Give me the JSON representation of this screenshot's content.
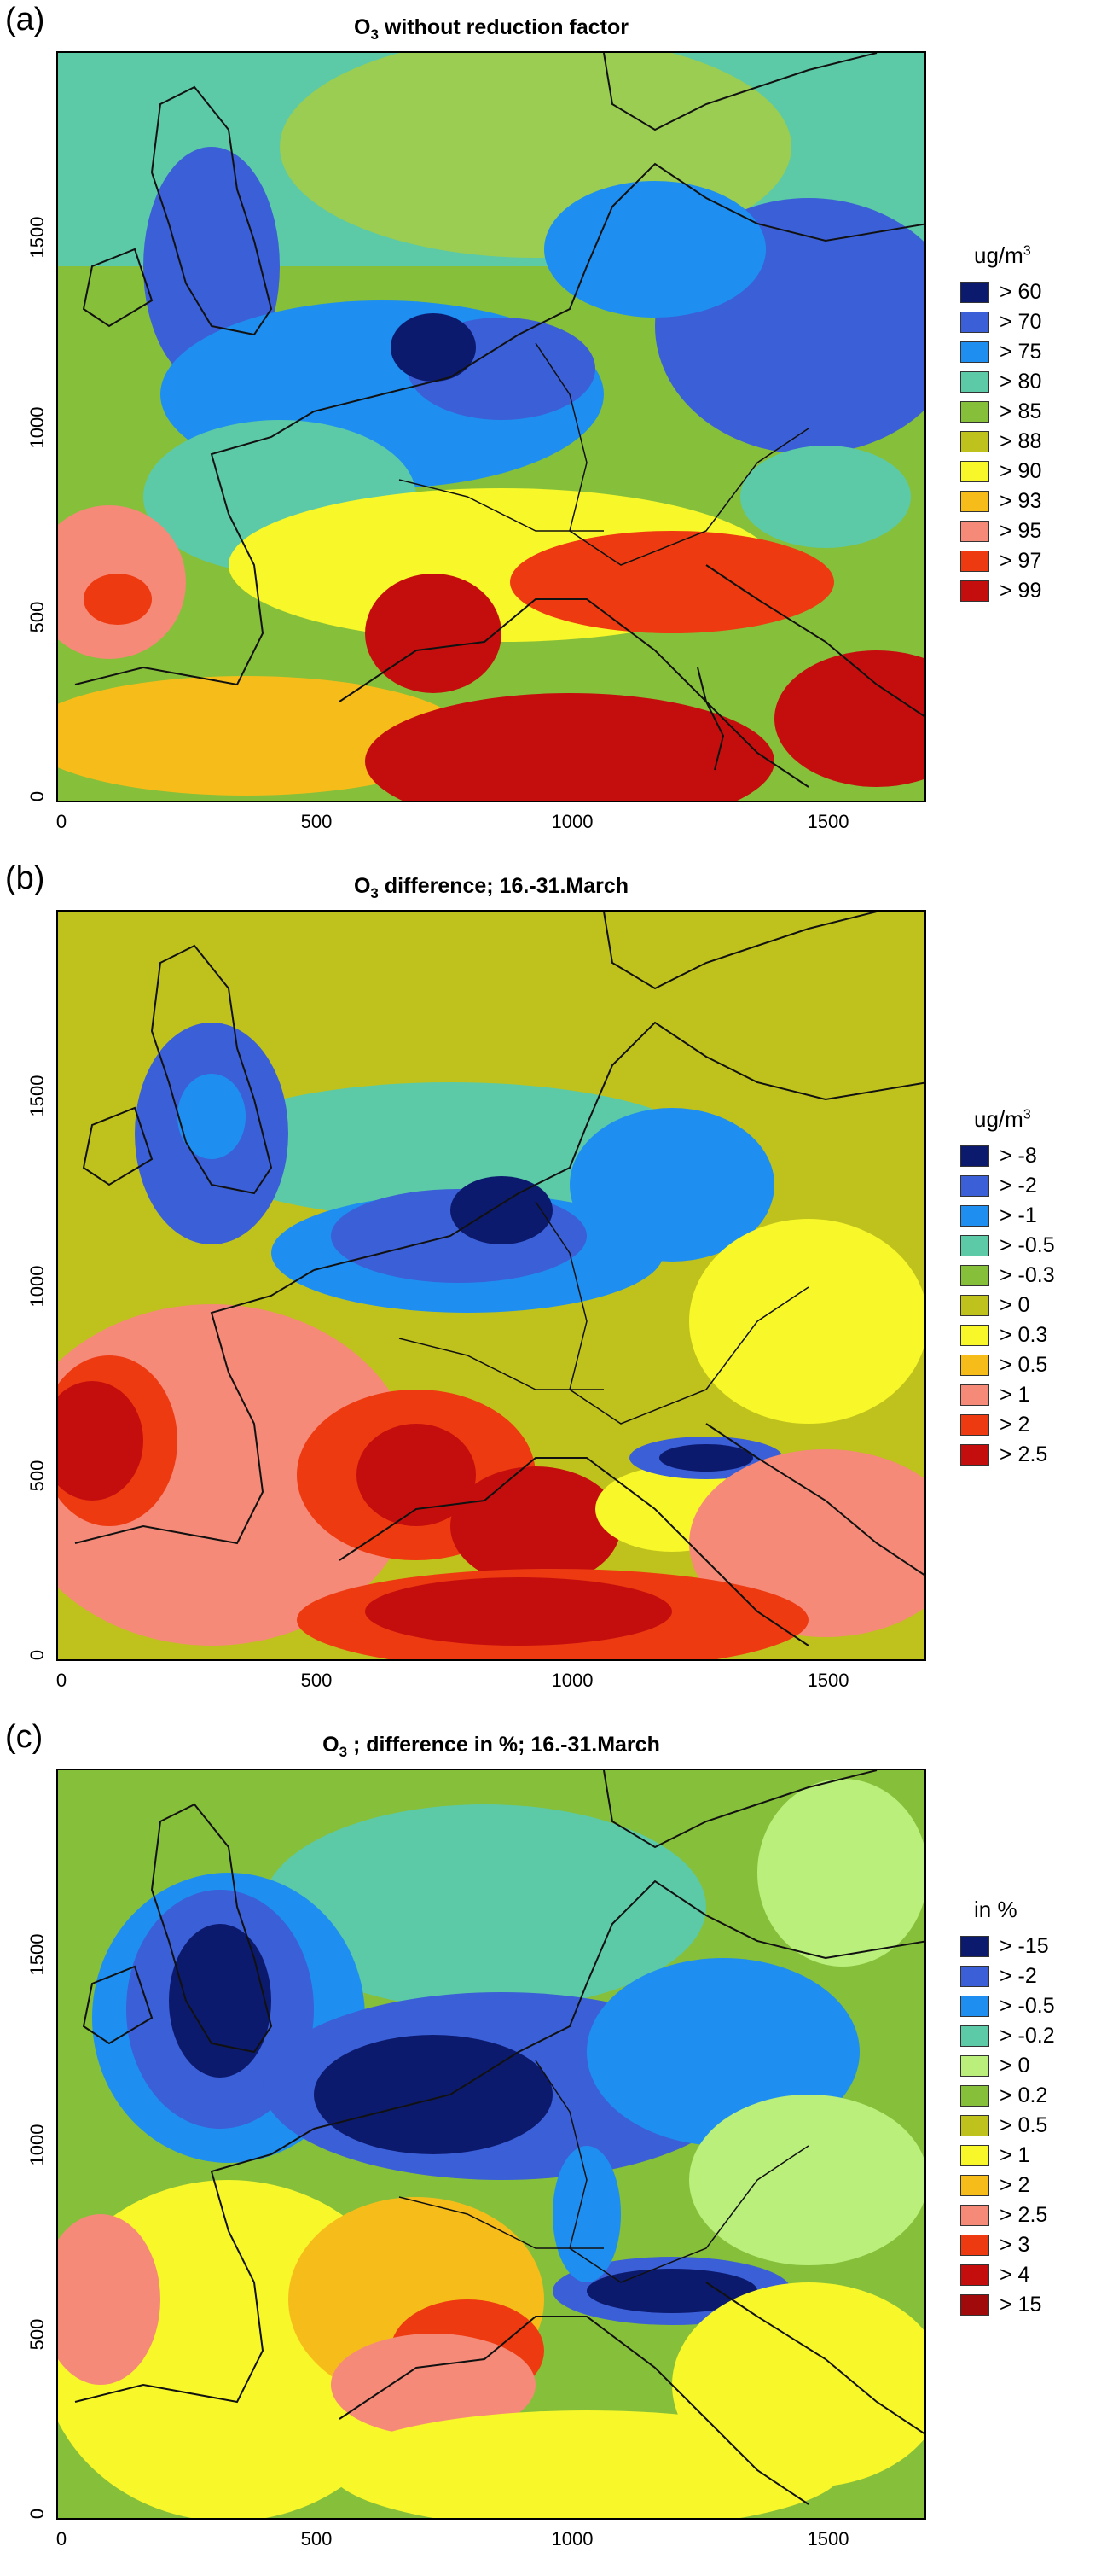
{
  "panels": [
    {
      "letter": "(a)",
      "title_prefix": "O",
      "title_sub": "3",
      "title_rest": " without reduction factor",
      "unit_main": "ug/m",
      "unit_sup": "3",
      "legend": [
        {
          "label": "> 60",
          "color": "#0c1a6e"
        },
        {
          "label": "> 70",
          "color": "#3b5fd6"
        },
        {
          "label": "> 75",
          "color": "#1e8ff0"
        },
        {
          "label": "> 80",
          "color": "#5ccaa6"
        },
        {
          "label": "> 85",
          "color": "#86bf3a"
        },
        {
          "label": "> 88",
          "color": "#bfc21c"
        },
        {
          "label": "> 90",
          "color": "#f7f72a"
        },
        {
          "label": "> 93",
          "color": "#f6bd1a"
        },
        {
          "label": "> 95",
          "color": "#f58a78"
        },
        {
          "label": "> 97",
          "color": "#ee3a10"
        },
        {
          "label": "> 99",
          "color": "#c40e0e"
        }
      ]
    },
    {
      "letter": "(b)",
      "title_prefix": "O",
      "title_sub": "3",
      "title_rest": " difference; 16.-31.March",
      "unit_main": "ug/m",
      "unit_sup": "3",
      "legend": [
        {
          "label": "> -8",
          "color": "#0c1a6e"
        },
        {
          "label": "> -2",
          "color": "#3b5fd6"
        },
        {
          "label": "> -1",
          "color": "#1e8ff0"
        },
        {
          "label": "> -0.5",
          "color": "#5ccaa6"
        },
        {
          "label": "> -0.3",
          "color": "#86bf3a"
        },
        {
          "label": "> 0",
          "color": "#bfc21c"
        },
        {
          "label": "> 0.3",
          "color": "#f7f72a"
        },
        {
          "label": "> 0.5",
          "color": "#f6bd1a"
        },
        {
          "label": "> 1",
          "color": "#f58a78"
        },
        {
          "label": "> 2",
          "color": "#ee3a10"
        },
        {
          "label": "> 2.5",
          "color": "#c40e0e"
        }
      ]
    },
    {
      "letter": "(c)",
      "title_prefix": "O",
      "title_sub": "3",
      "title_rest": " ; difference in %; 16.-31.March",
      "unit_main": "in %",
      "unit_sup": "",
      "legend": [
        {
          "label": "> -15",
          "color": "#0c1a6e"
        },
        {
          "label": "> -2",
          "color": "#3b5fd6"
        },
        {
          "label": "> -0.5",
          "color": "#1e8ff0"
        },
        {
          "label": "> -0.2",
          "color": "#5ccaa6"
        },
        {
          "label": "> 0",
          "color": "#b9ef7a"
        },
        {
          "label": "> 0.2",
          "color": "#86bf3a"
        },
        {
          "label": "> 0.5",
          "color": "#bfc21c"
        },
        {
          "label": "> 1",
          "color": "#f7f72a"
        },
        {
          "label": "> 2",
          "color": "#f6bd1a"
        },
        {
          "label": "> 2.5",
          "color": "#f58a78"
        },
        {
          "label": "> 3",
          "color": "#ee3a10"
        },
        {
          "label": "> 4",
          "color": "#c40e0e"
        },
        {
          "label": "> 15",
          "color": "#a00a0a"
        }
      ]
    }
  ],
  "axes": {
    "x_ticks": [
      "0",
      "500",
      "1000",
      "1500"
    ],
    "y_ticks": [
      "0",
      "500",
      "1000",
      "1500"
    ]
  }
}
